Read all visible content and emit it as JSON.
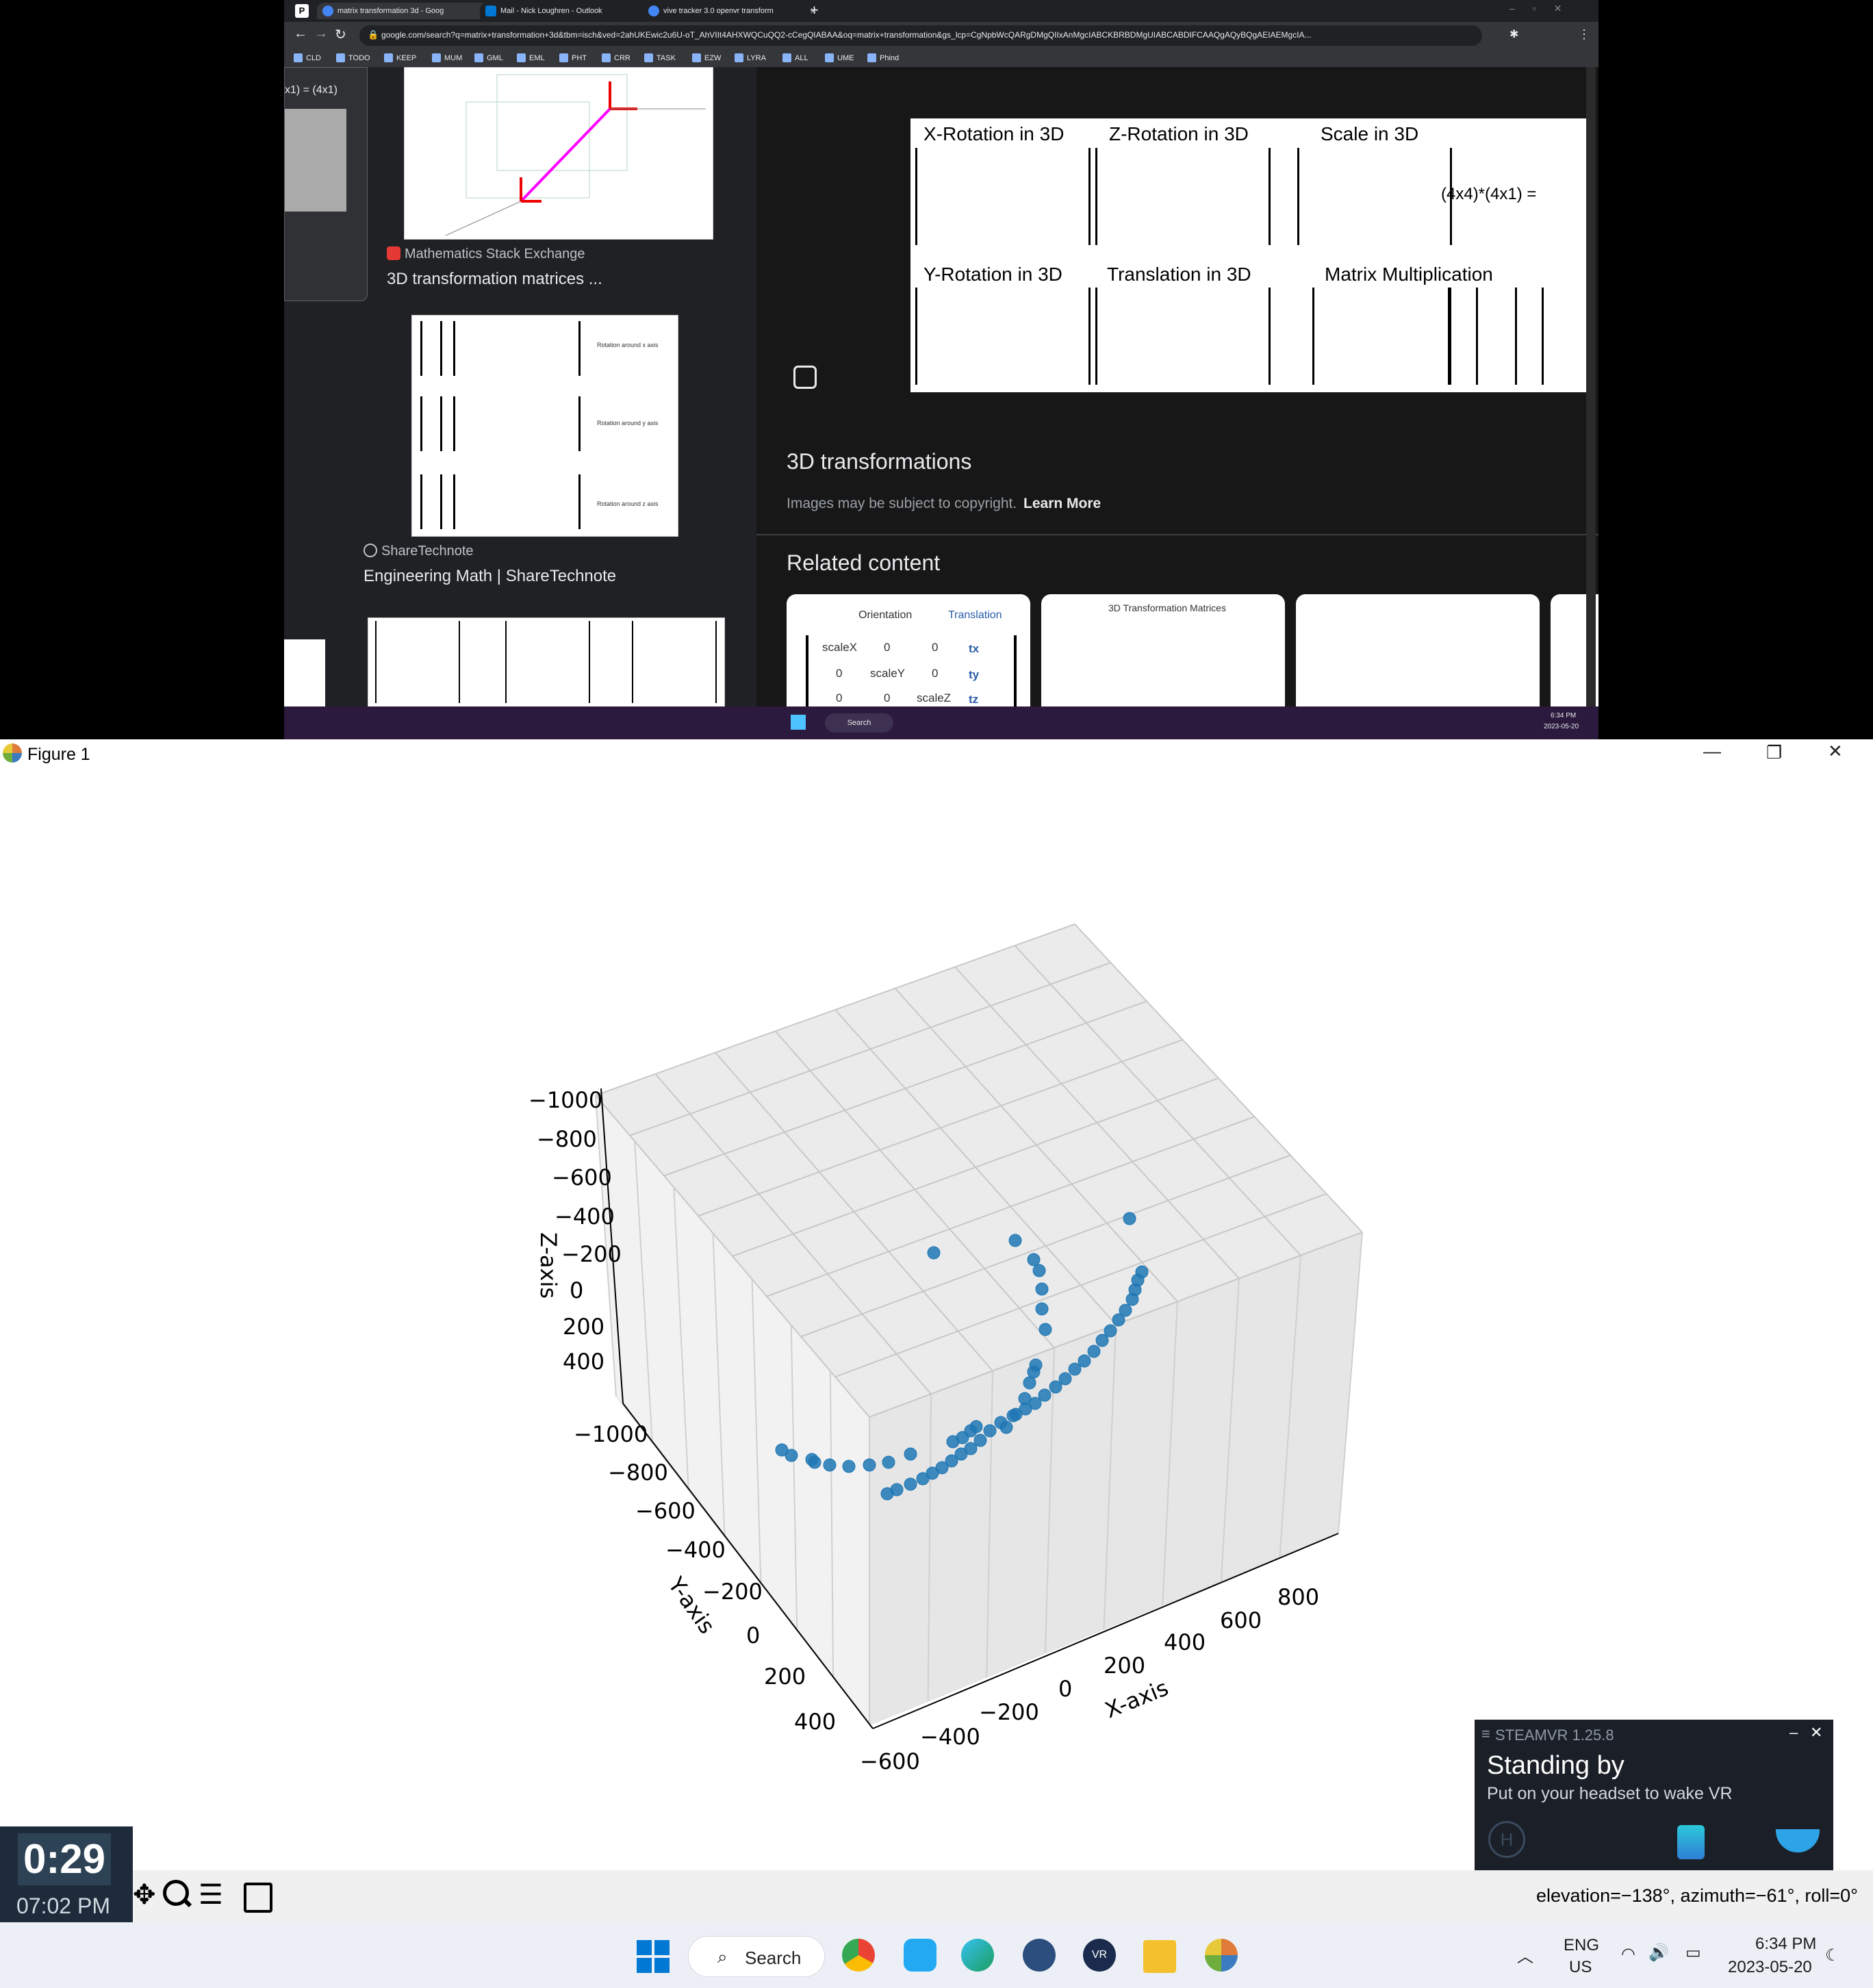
{
  "browser": {
    "tabs": [
      {
        "label": "matrix transformation 3d - Goog",
        "active": true
      },
      {
        "label": "Mail - Nick Loughren - Outlook",
        "active": false
      },
      {
        "label": "vive tracker 3.0 openvr transform",
        "active": false
      }
    ],
    "url": "google.com/search?q=matrix+transformation+3d&tbm=isch&ved=2ahUKEwic2u6U-oT_AhVIIt4AHXWQCuQQ2-cCegQIABAA&oq=matrix+transformation&gs_lcp=CgNpbWcQARgDMgQIIxAnMgcIABCKBRBDMgUIABCABDIFCAAQgAQyBQgAEIAEMgcIA...",
    "bookmarks": [
      "CLD",
      "TODO",
      "KEEP",
      "MUM",
      "GML",
      "EML",
      "PHT",
      "CRR",
      "TASK",
      "EZW",
      "LYRA",
      "ALL",
      "UME",
      "Phind"
    ]
  },
  "results": {
    "left_fragment": "x1) = (4x1)",
    "result1": {
      "source": "Mathematics Stack Exchange",
      "title": "3D transformation matrices ..."
    },
    "result2": {
      "source": "ShareTechnote",
      "title": "Engineering Math | ShareTechnote"
    },
    "result2_image": {
      "rot_x": "Rotation around x axis",
      "rot_y": "Rotation around y axis",
      "rot_z": "Rotation around z axis"
    }
  },
  "preview": {
    "headers": [
      "X-Rotation in 3D",
      "Z-Rotation in 3D",
      "Scale in 3D",
      "Y-Rotation in 3D",
      "Translation in 3D",
      "Matrix Multiplication"
    ],
    "mult_label": "(4x4)*(4x1) =",
    "title": "3D transformations",
    "copyright": "Images may be subject to copyright.",
    "learn_more": "Learn More",
    "related": "Related content",
    "related_card1": {
      "orientation": "Orientation",
      "translation": "Translation",
      "scaleX": "scaleX",
      "scaleY": "scaleY",
      "scaleZ": "scaleZ",
      "tx": "tx",
      "ty": "ty",
      "tz": "tz",
      "zero": "0"
    },
    "related_card2": "3D Transformation Matrices"
  },
  "top_taskbar": {
    "search": "Search",
    "time": "6:34 PM",
    "date": "2023-05-20"
  },
  "figure": {
    "title": "Figure 1",
    "status": "elevation=−138°, azimuth=−61°, roll=0°"
  },
  "chart_data": {
    "type": "scatter",
    "projection": "3d",
    "xlabel": "X-axis",
    "ylabel": "Y-axis",
    "zlabel": "Z-axis",
    "x_ticks": [
      "−600",
      "−400",
      "−200",
      "0",
      "200",
      "400",
      "600",
      "800"
    ],
    "y_ticks": [
      "−1000",
      "−800",
      "−600",
      "−400",
      "−200",
      "0",
      "200",
      "400"
    ],
    "z_ticks": [
      "−1000",
      "−800",
      "−600",
      "−400",
      "−200",
      "0",
      "200",
      "400"
    ],
    "color": "#1f77b4",
    "grid": true,
    "series_note": "points read approximately from the rendered view"
  },
  "steamvr": {
    "title": "STEAMVR 1.25.8",
    "status": "Standing by",
    "hint": "Put on your headset to wake VR"
  },
  "timer": {
    "elapsed": "0:29",
    "clock": "07:02 PM"
  },
  "main_taskbar": {
    "search": "Search",
    "lang": "ENG",
    "region": "US",
    "time": "6:34 PM",
    "date": "2023-05-20"
  },
  "colors": {
    "accent": "#1f77b4",
    "chrome_dark": "#202124",
    "taskbar": "#ecf0f6"
  }
}
